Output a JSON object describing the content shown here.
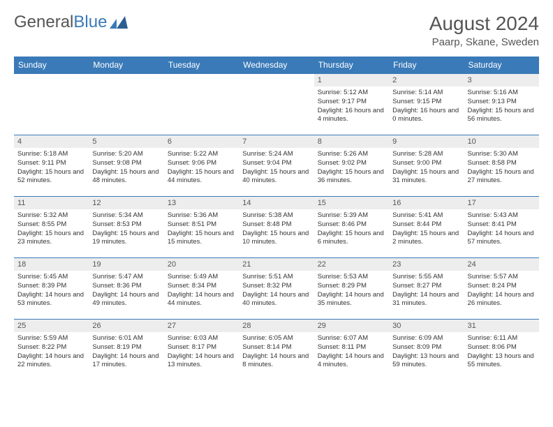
{
  "logo": {
    "word1": "General",
    "word2": "Blue"
  },
  "title": "August 2024",
  "location": "Paarp, Skane, Sweden",
  "colors": {
    "header_bg": "#3a7ab8",
    "header_text": "#ffffff",
    "daynum_bg": "#ededed",
    "border": "#3a7ab8",
    "text": "#333333",
    "title": "#555555"
  },
  "days_of_week": [
    "Sunday",
    "Monday",
    "Tuesday",
    "Wednesday",
    "Thursday",
    "Friday",
    "Saturday"
  ],
  "weeks": [
    [
      {
        "empty": true
      },
      {
        "empty": true
      },
      {
        "empty": true
      },
      {
        "empty": true
      },
      {
        "n": "1",
        "sunrise": "5:12 AM",
        "sunset": "9:17 PM",
        "daylight": "16 hours and 4 minutes."
      },
      {
        "n": "2",
        "sunrise": "5:14 AM",
        "sunset": "9:15 PM",
        "daylight": "16 hours and 0 minutes."
      },
      {
        "n": "3",
        "sunrise": "5:16 AM",
        "sunset": "9:13 PM",
        "daylight": "15 hours and 56 minutes."
      }
    ],
    [
      {
        "n": "4",
        "sunrise": "5:18 AM",
        "sunset": "9:11 PM",
        "daylight": "15 hours and 52 minutes."
      },
      {
        "n": "5",
        "sunrise": "5:20 AM",
        "sunset": "9:08 PM",
        "daylight": "15 hours and 48 minutes."
      },
      {
        "n": "6",
        "sunrise": "5:22 AM",
        "sunset": "9:06 PM",
        "daylight": "15 hours and 44 minutes."
      },
      {
        "n": "7",
        "sunrise": "5:24 AM",
        "sunset": "9:04 PM",
        "daylight": "15 hours and 40 minutes."
      },
      {
        "n": "8",
        "sunrise": "5:26 AM",
        "sunset": "9:02 PM",
        "daylight": "15 hours and 36 minutes."
      },
      {
        "n": "9",
        "sunrise": "5:28 AM",
        "sunset": "9:00 PM",
        "daylight": "15 hours and 31 minutes."
      },
      {
        "n": "10",
        "sunrise": "5:30 AM",
        "sunset": "8:58 PM",
        "daylight": "15 hours and 27 minutes."
      }
    ],
    [
      {
        "n": "11",
        "sunrise": "5:32 AM",
        "sunset": "8:55 PM",
        "daylight": "15 hours and 23 minutes."
      },
      {
        "n": "12",
        "sunrise": "5:34 AM",
        "sunset": "8:53 PM",
        "daylight": "15 hours and 19 minutes."
      },
      {
        "n": "13",
        "sunrise": "5:36 AM",
        "sunset": "8:51 PM",
        "daylight": "15 hours and 15 minutes."
      },
      {
        "n": "14",
        "sunrise": "5:38 AM",
        "sunset": "8:48 PM",
        "daylight": "15 hours and 10 minutes."
      },
      {
        "n": "15",
        "sunrise": "5:39 AM",
        "sunset": "8:46 PM",
        "daylight": "15 hours and 6 minutes."
      },
      {
        "n": "16",
        "sunrise": "5:41 AM",
        "sunset": "8:44 PM",
        "daylight": "15 hours and 2 minutes."
      },
      {
        "n": "17",
        "sunrise": "5:43 AM",
        "sunset": "8:41 PM",
        "daylight": "14 hours and 57 minutes."
      }
    ],
    [
      {
        "n": "18",
        "sunrise": "5:45 AM",
        "sunset": "8:39 PM",
        "daylight": "14 hours and 53 minutes."
      },
      {
        "n": "19",
        "sunrise": "5:47 AM",
        "sunset": "8:36 PM",
        "daylight": "14 hours and 49 minutes."
      },
      {
        "n": "20",
        "sunrise": "5:49 AM",
        "sunset": "8:34 PM",
        "daylight": "14 hours and 44 minutes."
      },
      {
        "n": "21",
        "sunrise": "5:51 AM",
        "sunset": "8:32 PM",
        "daylight": "14 hours and 40 minutes."
      },
      {
        "n": "22",
        "sunrise": "5:53 AM",
        "sunset": "8:29 PM",
        "daylight": "14 hours and 35 minutes."
      },
      {
        "n": "23",
        "sunrise": "5:55 AM",
        "sunset": "8:27 PM",
        "daylight": "14 hours and 31 minutes."
      },
      {
        "n": "24",
        "sunrise": "5:57 AM",
        "sunset": "8:24 PM",
        "daylight": "14 hours and 26 minutes."
      }
    ],
    [
      {
        "n": "25",
        "sunrise": "5:59 AM",
        "sunset": "8:22 PM",
        "daylight": "14 hours and 22 minutes."
      },
      {
        "n": "26",
        "sunrise": "6:01 AM",
        "sunset": "8:19 PM",
        "daylight": "14 hours and 17 minutes."
      },
      {
        "n": "27",
        "sunrise": "6:03 AM",
        "sunset": "8:17 PM",
        "daylight": "14 hours and 13 minutes."
      },
      {
        "n": "28",
        "sunrise": "6:05 AM",
        "sunset": "8:14 PM",
        "daylight": "14 hours and 8 minutes."
      },
      {
        "n": "29",
        "sunrise": "6:07 AM",
        "sunset": "8:11 PM",
        "daylight": "14 hours and 4 minutes."
      },
      {
        "n": "30",
        "sunrise": "6:09 AM",
        "sunset": "8:09 PM",
        "daylight": "13 hours and 59 minutes."
      },
      {
        "n": "31",
        "sunrise": "6:11 AM",
        "sunset": "8:06 PM",
        "daylight": "13 hours and 55 minutes."
      }
    ]
  ],
  "labels": {
    "sunrise": "Sunrise: ",
    "sunset": "Sunset: ",
    "daylight": "Daylight: "
  }
}
